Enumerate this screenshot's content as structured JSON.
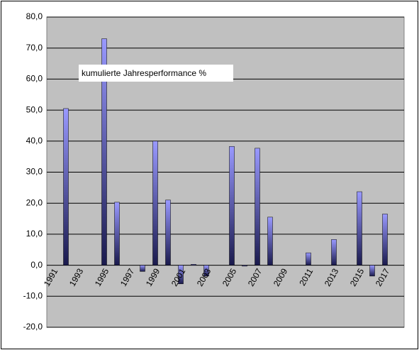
{
  "chart_data": {
    "type": "bar",
    "annotation": "kumulierte Jahresperformance %",
    "categories": [
      "1991",
      null,
      "1993",
      null,
      "1995",
      null,
      "1997",
      null,
      "1999",
      null,
      "2001",
      null,
      "2003",
      null,
      "2005",
      null,
      "2007",
      null,
      "2009",
      null,
      "2011",
      null,
      "2013",
      null,
      "2015",
      null,
      "2017",
      null
    ],
    "values": [
      null,
      50.5,
      null,
      null,
      73,
      20.3,
      null,
      -2,
      40,
      21,
      -6,
      0.3,
      -3.5,
      null,
      38.3,
      -0.3,
      37.7,
      15.5,
      null,
      null,
      4,
      null,
      8.3,
      null,
      23.7,
      -3.5,
      16.5,
      null
    ],
    "color": "#9999ff",
    "ylim": [
      -20,
      80
    ],
    "yticks": [
      {
        "value": -20,
        "label": "-20,0"
      },
      {
        "value": -10,
        "label": "-10,0"
      },
      {
        "value": 0,
        "label": "0,0"
      },
      {
        "value": 10,
        "label": "10,0"
      },
      {
        "value": 20,
        "label": "20,0"
      },
      {
        "value": 30,
        "label": "30,0"
      },
      {
        "value": 40,
        "label": "40,0"
      },
      {
        "value": 50,
        "label": "50,0"
      },
      {
        "value": 60,
        "label": "60,0"
      },
      {
        "value": 70,
        "label": "70,0"
      },
      {
        "value": 80,
        "label": "80,0"
      }
    ],
    "grid": true
  }
}
